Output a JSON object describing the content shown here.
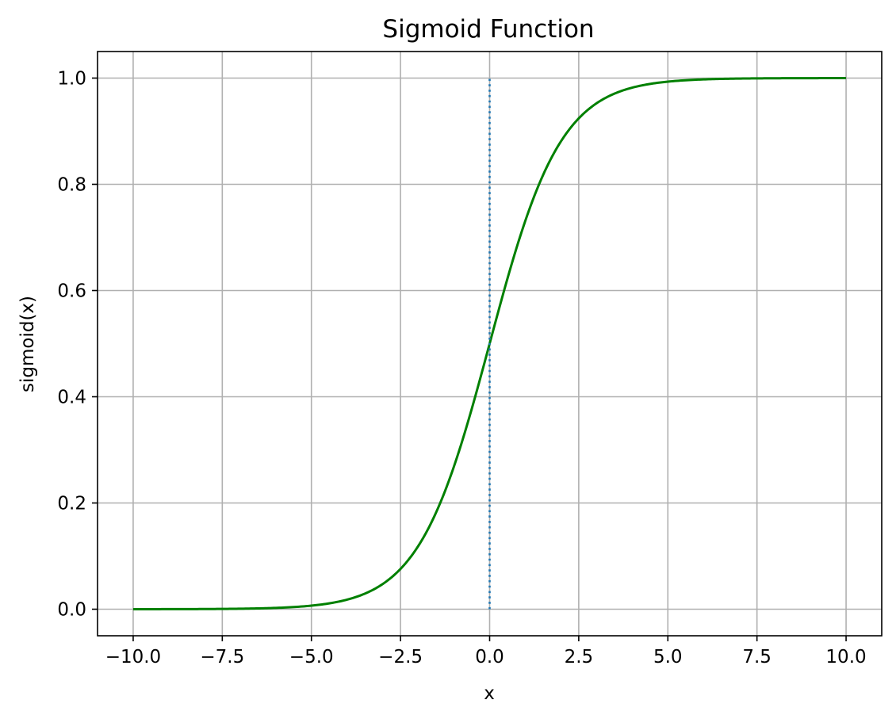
{
  "chart_data": {
    "type": "line",
    "title": "Sigmoid Function",
    "xlabel": "x",
    "ylabel": "sigmoid(x)",
    "xlim": [
      -11,
      11
    ],
    "ylim": [
      -0.05,
      1.05
    ],
    "grid": true,
    "x_ticks": [
      -10.0,
      -7.5,
      -5.0,
      -2.5,
      0.0,
      2.5,
      5.0,
      7.5,
      10.0
    ],
    "x_tick_labels": [
      "−10.0",
      "−7.5",
      "−5.0",
      "−2.5",
      "0.0",
      "2.5",
      "5.0",
      "7.5",
      "10.0"
    ],
    "y_ticks": [
      0.0,
      0.2,
      0.4,
      0.6,
      0.8,
      1.0
    ],
    "y_tick_labels": [
      "0.0",
      "0.2",
      "0.4",
      "0.6",
      "0.8",
      "1.0"
    ],
    "series": [
      {
        "color": "#008000",
        "style": "solid",
        "x": [
          -10,
          -9,
          -8,
          -7,
          -6,
          -5,
          -4.5,
          -4,
          -3.5,
          -3,
          -2.5,
          -2,
          -1.5,
          -1,
          -0.5,
          0,
          0.5,
          1,
          1.5,
          2,
          2.5,
          3,
          3.5,
          4,
          4.5,
          5,
          6,
          7,
          8,
          9,
          10
        ],
        "y": [
          4.54e-05,
          0.000123,
          0.000335,
          0.000911,
          0.00247,
          0.00669,
          0.011,
          0.018,
          0.0293,
          0.0474,
          0.0759,
          0.1192,
          0.1824,
          0.2689,
          0.3775,
          0.5,
          0.6225,
          0.7311,
          0.8176,
          0.8808,
          0.9241,
          0.9526,
          0.9707,
          0.982,
          0.989,
          0.99331,
          0.99753,
          0.99909,
          0.99966,
          0.99988,
          0.99995
        ]
      },
      {
        "color": "#1f77b4",
        "style": "dotted",
        "x": [
          0,
          0
        ],
        "y": [
          0,
          1
        ]
      }
    ]
  }
}
